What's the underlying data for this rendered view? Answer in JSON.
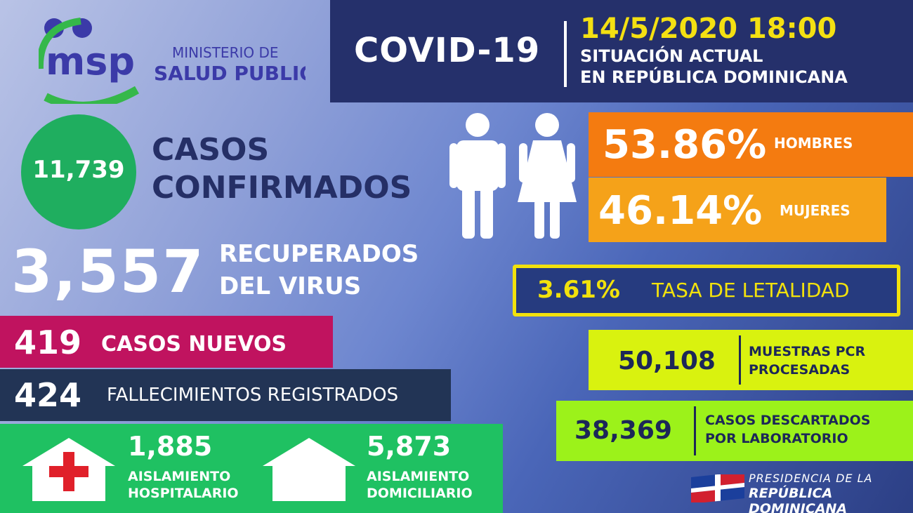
{
  "header": {
    "ministry_line1": "MINISTERIO DE",
    "ministry_line2": "SALUD PUBLICA",
    "title": "COVID-19",
    "datetime": "14/5/2020 18:00",
    "subtitle_line1": "SITUACIÓN ACTUAL",
    "subtitle_line2": "EN REPÚBLICA DOMINICANA"
  },
  "confirmed": {
    "value": "11,739",
    "label_line1": "CASOS",
    "label_line2": "CONFIRMADOS"
  },
  "recovered": {
    "value": "3,557",
    "label_line1": "RECUPERADOS",
    "label_line2": "DEL VIRUS"
  },
  "new_cases": {
    "value": "419",
    "label": "CASOS NUEVOS"
  },
  "deaths": {
    "value": "424",
    "label": "FALLECIMIENTOS REGISTRADOS"
  },
  "isolation": {
    "hospital": {
      "value": "1,885",
      "label_line1": "AISLAMIENTO",
      "label_line2": "HOSPITALARIO"
    },
    "home": {
      "value": "5,873",
      "label_line1": "AISLAMIENTO",
      "label_line2": "DOMICILIARIO"
    }
  },
  "gender": {
    "men": {
      "value": "53.86%",
      "label": "HOMBRES"
    },
    "women": {
      "value": "46.14%",
      "label": "MUJERES"
    }
  },
  "lethality": {
    "value": "3.61%",
    "label": "TASA DE LETALIDAD"
  },
  "pcr": {
    "value": "50,108",
    "label_line1": "MUESTRAS PCR",
    "label_line2": "PROCESADAS"
  },
  "discarded": {
    "value": "38,369",
    "label_line1": "CASOS DESCARTADOS",
    "label_line2": "POR LABORATORIO"
  },
  "footer": {
    "line1": "PRESIDENCIA DE LA",
    "line2": "REPÚBLICA DOMINICANA"
  },
  "colors": {
    "navy": "#25306b",
    "green": "#1fae5f",
    "magenta": "#c0135f",
    "orange": "#f47b10",
    "amber": "#f5a219",
    "yellow": "#f2e20c",
    "lime": "#d9f20f"
  },
  "icons": [
    "msp-logo",
    "man-icon",
    "woman-icon",
    "hospital-house-icon",
    "home-icon",
    "dominican-flag-icon"
  ]
}
